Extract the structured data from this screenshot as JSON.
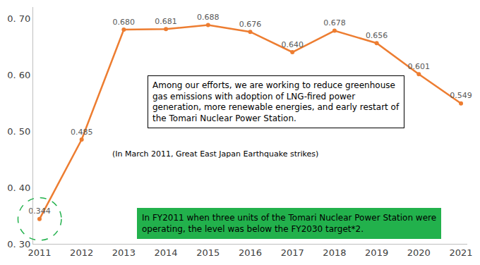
{
  "chart_data": {
    "type": "line",
    "x": [
      2011,
      2012,
      2013,
      2014,
      2015,
      2016,
      2017,
      2018,
      2019,
      2020,
      2021
    ],
    "values": [
      0.344,
      0.485,
      0.68,
      0.681,
      0.688,
      0.676,
      0.64,
      0.678,
      0.656,
      0.601,
      0.549
    ],
    "value_labels": [
      "0.344",
      "0.485",
      "0.680",
      "0.681",
      "0.688",
      "0.676",
      "0.640",
      "0.678",
      "0.656",
      "0.601",
      "0.549"
    ],
    "data_labels": true,
    "color": "#ed7d31",
    "marker": "circle",
    "xlim": [
      2010.85,
      2021.15
    ],
    "xticks": [
      2011,
      2012,
      2013,
      2014,
      2015,
      2016,
      2017,
      2018,
      2019,
      2020,
      2021
    ],
    "ylim": [
      0.3,
      0.72
    ],
    "yticks": [
      {
        "value": 0.3,
        "label": "0. 30"
      },
      {
        "value": 0.4,
        "label": "0. 40"
      },
      {
        "value": 0.5,
        "label": "0. 50"
      },
      {
        "value": 0.6,
        "label": "0. 60"
      },
      {
        "value": 0.7,
        "label": "0. 70"
      }
    ],
    "grid": false,
    "annotations": [
      [
        "Among our efforts, we are working to reduce greenhouse",
        "gas emissions with adoption of LNG-fired power",
        "generation, more renewable energies, and early restart of",
        "the Tomari Nuclear Power Station."
      ],
      [
        "(In March 2011, Great East Japan Earthquake strikes)"
      ],
      [
        "In FY2011 when three units of the Tomari Nuclear Power Station were",
        "operating, the level was below the FY2030 target*2."
      ]
    ]
  }
}
